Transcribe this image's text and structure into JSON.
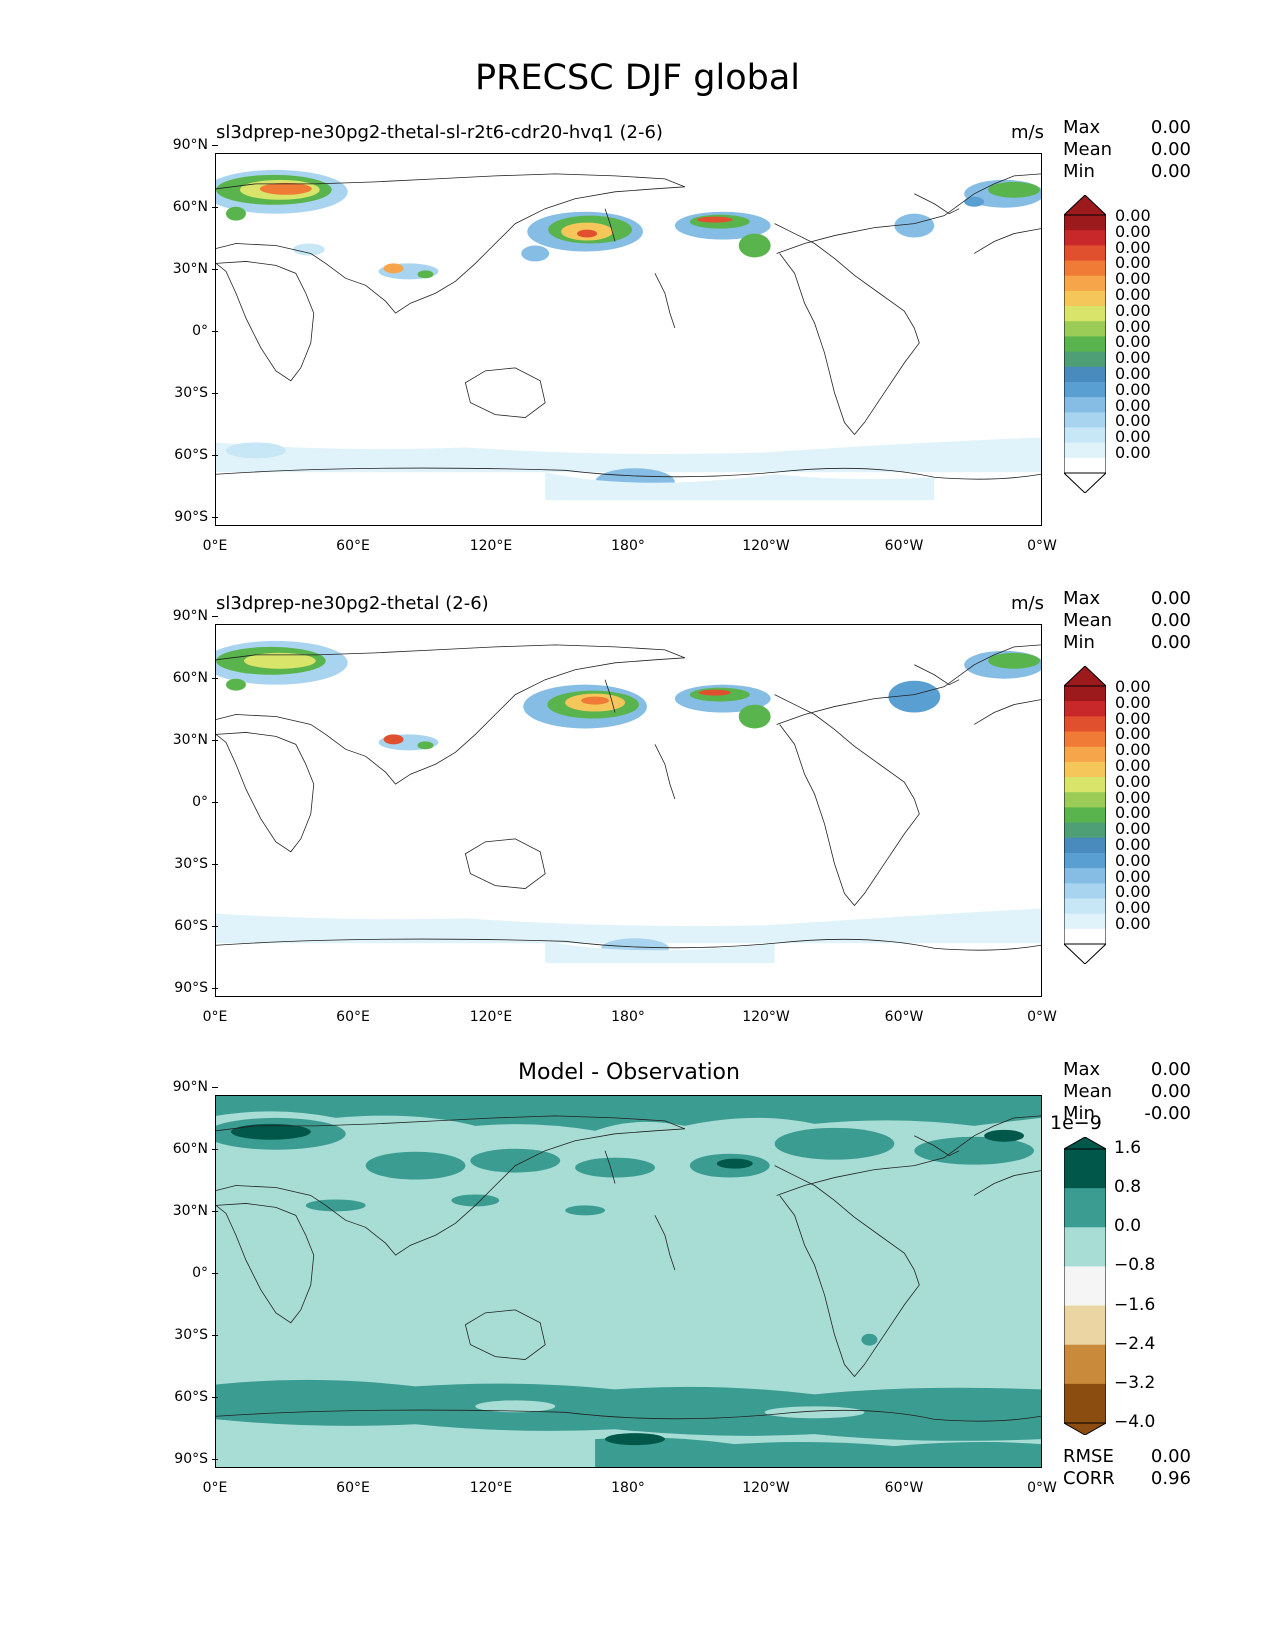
{
  "figure": {
    "title": "PRECSC DJF global"
  },
  "axes": {
    "y_ticks": [
      "90°N",
      "60°N",
      "30°N",
      "0°",
      "30°S",
      "60°S",
      "90°S"
    ],
    "x_ticks": [
      "0°E",
      "60°E",
      "120°E",
      "180°",
      "120°W",
      "60°W",
      "0°W"
    ]
  },
  "panels": [
    {
      "title": "sl3dprep-ne30pg2-thetal-sl-r2t6-cdr20-hvq1 (2-6)",
      "units": "m/s",
      "stats": {
        "max_label": "Max",
        "max": "0.00",
        "mean_label": "Mean",
        "mean": "0.00",
        "min_label": "Min",
        "min": "0.00"
      },
      "colorbar_labels": [
        "0.00",
        "0.00",
        "0.00",
        "0.00",
        "0.00",
        "0.00",
        "0.00",
        "0.00",
        "0.00",
        "0.00",
        "0.00",
        "0.00",
        "0.00",
        "0.00",
        "0.00",
        "0.00"
      ]
    },
    {
      "title": "sl3dprep-ne30pg2-thetal (2-6)",
      "units": "m/s",
      "stats": {
        "max_label": "Max",
        "max": "0.00",
        "mean_label": "Mean",
        "mean": "0.00",
        "min_label": "Min",
        "min": "0.00"
      },
      "colorbar_labels": [
        "0.00",
        "0.00",
        "0.00",
        "0.00",
        "0.00",
        "0.00",
        "0.00",
        "0.00",
        "0.00",
        "0.00",
        "0.00",
        "0.00",
        "0.00",
        "0.00",
        "0.00",
        "0.00"
      ]
    },
    {
      "title": "Model - Observation",
      "stats": {
        "max_label": "Max",
        "max": "0.00",
        "mean_label": "Mean",
        "mean": "0.00",
        "min_label": "Min",
        "min": "-0.00"
      },
      "colorbar_offset": "1e−9",
      "colorbar_labels": [
        "1.6",
        "0.8",
        "0.0",
        "−0.8",
        "−1.6",
        "−2.4",
        "−3.2",
        "−4.0"
      ],
      "rmse_label": "RMSE",
      "rmse": "0.00",
      "corr_label": "CORR",
      "corr": "0.96"
    }
  ],
  "colors": {
    "precip_scale": [
      "#ffffff",
      "#e0f3fa",
      "#c7e6f6",
      "#a9d4f0",
      "#86bde4",
      "#5a9fd2",
      "#4a8bbd",
      "#4e9e76",
      "#5ab44d",
      "#9bcc57",
      "#d8e46a",
      "#f5c75a",
      "#f7a54a",
      "#ef7b36",
      "#e0502e",
      "#c8282a",
      "#9c1a1c"
    ],
    "diff_scale": [
      "#00574a",
      "#3b9c91",
      "#a8ddd5",
      "#f5f5f5",
      "#ebd5a3",
      "#c98a3c",
      "#8b4d10"
    ]
  }
}
